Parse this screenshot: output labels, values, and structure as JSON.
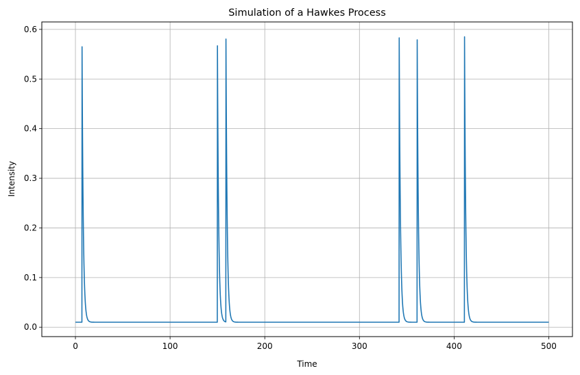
{
  "chart_data": {
    "type": "line",
    "title": "Simulation of a Hawkes Process",
    "xlabel": "Time",
    "ylabel": "Intensity",
    "xlim": [
      -35.5,
      525
    ],
    "ylim": [
      -0.019,
      0.615
    ],
    "grid": true,
    "legend": "none",
    "x_ticks": [
      0,
      100,
      200,
      300,
      400,
      500
    ],
    "x_tick_labels": [
      "0",
      "100",
      "200",
      "300",
      "400",
      "500"
    ],
    "y_ticks": [
      0.0,
      0.1,
      0.2,
      0.3,
      0.4,
      0.5,
      0.6
    ],
    "y_tick_labels": [
      "0.0",
      "0.1",
      "0.2",
      "0.3",
      "0.4",
      "0.5",
      "0.6"
    ],
    "series": [
      {
        "color": "#1f77b4",
        "baseline": 0.01,
        "x_range": [
          0,
          500
        ],
        "peaks": [
          {
            "x": 7,
            "y": 0.565
          },
          {
            "x": 150,
            "y": 0.567
          },
          {
            "x": 159,
            "y": 0.58
          },
          {
            "x": 342,
            "y": 0.583
          },
          {
            "x": 361,
            "y": 0.579
          },
          {
            "x": 411,
            "y": 0.585
          }
        ]
      }
    ]
  }
}
